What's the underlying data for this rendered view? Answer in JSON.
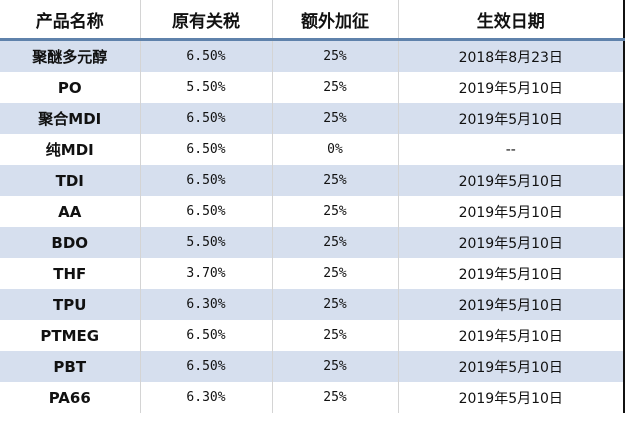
{
  "headers": [
    "产品名称",
    "原有关税",
    "额外加征",
    "生效日期"
  ],
  "rows": [
    [
      "聚醚多元醇",
      "6.50%",
      "25%",
      "2018年8月23日"
    ],
    [
      "PO",
      "5.50%",
      "25%",
      "2019年5月10日"
    ],
    [
      "聚合MDI",
      "6.50%",
      "25%",
      "2019年5月10日"
    ],
    [
      "纯MDI",
      "6.50%",
      "0%",
      "--"
    ],
    [
      "TDI",
      "6.50%",
      "25%",
      "2019年5月10日"
    ],
    [
      "AA",
      "6.50%",
      "25%",
      "2019年5月10日"
    ],
    [
      "BDO",
      "5.50%",
      "25%",
      "2019年5月10日"
    ],
    [
      "THF",
      "3.70%",
      "25%",
      "2019年5月10日"
    ],
    [
      "TPU",
      "6.30%",
      "25%",
      "2019年5月10日"
    ],
    [
      "PTMEG",
      "6.50%",
      "25%",
      "2019年5月10日"
    ],
    [
      "PBT",
      "6.50%",
      "25%",
      "2019年5月10日"
    ],
    [
      "PA66",
      "6.30%",
      "25%",
      "2019年5月10日"
    ]
  ],
  "colors": {
    "stripe": "#d6dfee",
    "header_rule": "#5f82ab"
  }
}
